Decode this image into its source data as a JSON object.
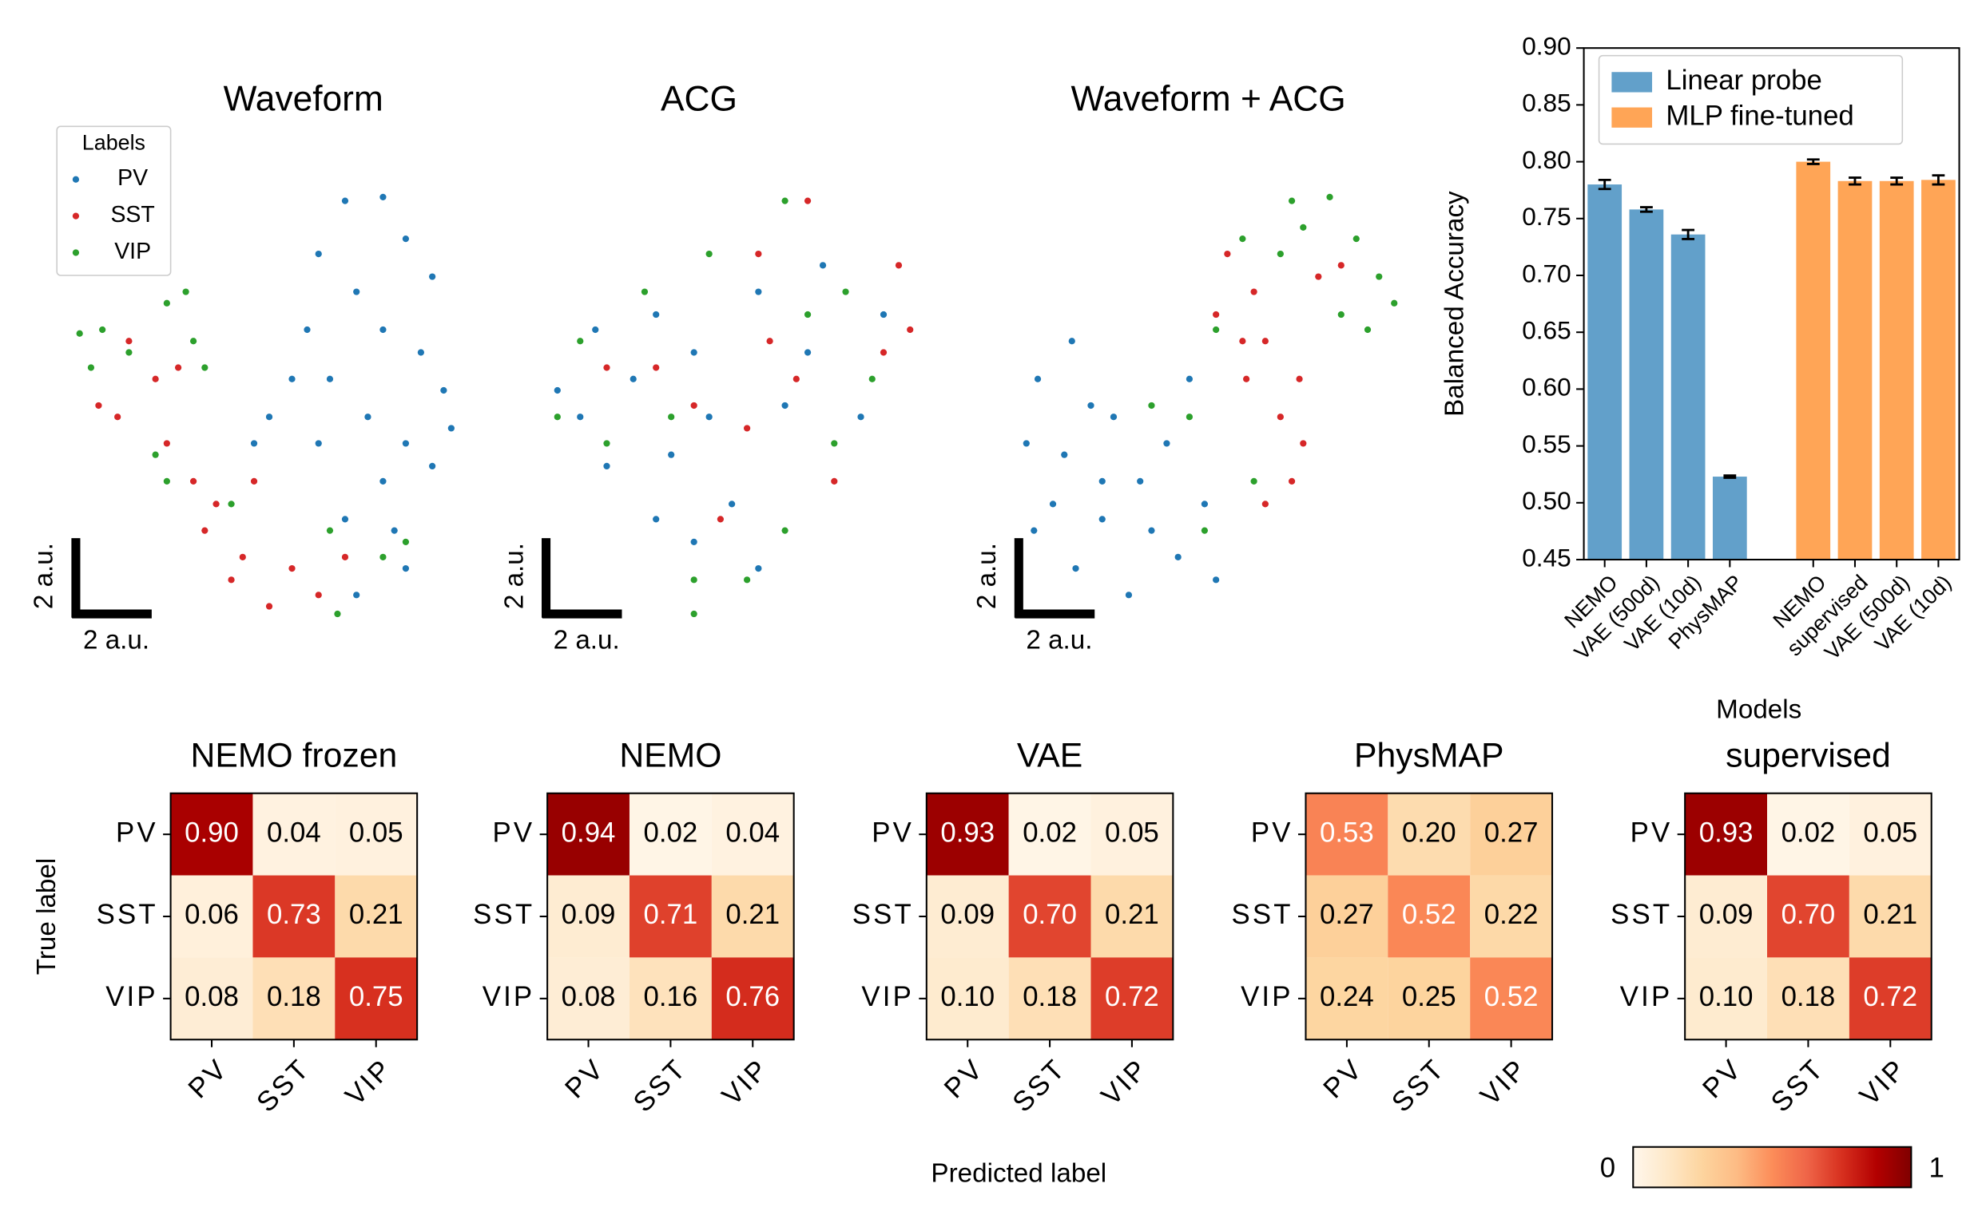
{
  "chart_data": [
    {
      "type": "scatter",
      "title": "Waveform",
      "legend": "upper left",
      "legend_title": "Labels",
      "scale_bar": {
        "value": 2,
        "label": "2 a.u."
      },
      "series": [
        {
          "name": "PV",
          "color": "#1f77b4",
          "x": [
            7.1,
            8.1,
            6.4,
            8.7,
            7.4,
            9.4,
            6.1,
            8.1,
            9.1,
            6.7,
            9.7,
            7.7,
            8.7,
            8.1,
            9.4,
            7.1,
            8.4,
            8.7,
            5.1,
            5.7,
            7.4,
            4.7,
            9.9,
            6.4
          ],
          "y": [
            10.9,
            11.0,
            9.5,
            9.9,
            8.5,
            8.9,
            7.5,
            7.5,
            6.9,
            6.2,
            5.9,
            5.2,
            4.5,
            3.5,
            3.9,
            2.5,
            2.2,
            1.2,
            5.2,
            6.2,
            0.5,
            4.5,
            4.9,
            4.5
          ]
        },
        {
          "name": "SST",
          "color": "#d62728",
          "x": [
            0.6,
            1.1,
            2.4,
            3.1,
            3.4,
            4.4,
            5.7,
            6.4,
            5.1,
            3.7,
            2.1,
            1.4,
            2.7,
            7.1,
            4.1,
            4.7
          ],
          "y": [
            5.5,
            5.2,
            4.5,
            3.5,
            2.2,
            1.5,
            1.2,
            0.5,
            0.2,
            2.9,
            6.2,
            7.2,
            6.5,
            1.5,
            0.9,
            3.5
          ]
        },
        {
          "name": "VIP",
          "color": "#2ca02c",
          "x": [
            0.1,
            0.7,
            1.4,
            2.4,
            2.9,
            3.1,
            3.4,
            2.1,
            4.1,
            6.7,
            8.1,
            8.7,
            6.9,
            2.4,
            0.4
          ],
          "y": [
            7.4,
            7.5,
            6.9,
            8.2,
            8.5,
            7.2,
            6.5,
            4.2,
            2.9,
            2.2,
            1.5,
            1.9,
            0.0,
            3.5,
            6.5
          ]
        }
      ]
    },
    {
      "type": "scatter",
      "title": "ACG",
      "scale_bar": {
        "value": 2,
        "label": "2 a.u."
      },
      "series": [
        {
          "color": "#1f77b4",
          "x": [
            0.3,
            1.3,
            2.3,
            2.9,
            3.9,
            1.6,
            3.3,
            4.3,
            5.6,
            7.3,
            6.9,
            4.9,
            3.9,
            5.6,
            2.9,
            8.9,
            8.3,
            0.9,
            6.3
          ],
          "y": [
            5.9,
            7.5,
            6.2,
            7.9,
            6.9,
            3.9,
            4.2,
            5.2,
            8.5,
            9.2,
            6.9,
            2.9,
            1.9,
            1.2,
            2.5,
            7.9,
            5.2,
            5.2,
            5.5
          ]
        },
        {
          "color": "#d62728",
          "x": [
            6.9,
            5.6,
            9.3,
            9.6,
            6.6,
            7.6,
            5.3,
            3.9,
            2.9,
            1.6,
            4.6,
            5.9,
            8.9
          ],
          "y": [
            10.9,
            9.5,
            9.2,
            7.5,
            6.2,
            3.5,
            4.9,
            5.5,
            6.5,
            6.5,
            2.5,
            7.2,
            6.9
          ]
        },
        {
          "color": "#2ca02c",
          "x": [
            0.3,
            0.9,
            2.6,
            4.3,
            6.3,
            7.9,
            8.6,
            7.6,
            3.9,
            5.3,
            1.6,
            3.3,
            6.3,
            6.9,
            3.9
          ],
          "y": [
            5.2,
            7.2,
            8.5,
            9.5,
            10.9,
            8.5,
            6.2,
            4.5,
            0.9,
            0.9,
            4.5,
            5.2,
            2.2,
            7.9,
            0.0
          ]
        }
      ]
    },
    {
      "type": "scatter",
      "title": "Waveform + ACG",
      "scale_bar": {
        "value": 2,
        "label": "2 a.u."
      },
      "series": [
        {
          "color": "#1f77b4",
          "x": [
            1.4,
            0.5,
            1.9,
            0.2,
            1.2,
            2.5,
            3.2,
            0.9,
            2.2,
            3.5,
            1.5,
            2.9,
            4.2,
            5.2,
            4.5,
            3.9,
            0.4,
            2.2,
            4.9
          ],
          "y": [
            7.2,
            6.2,
            5.5,
            4.5,
            4.2,
            5.2,
            3.5,
            2.9,
            2.5,
            2.2,
            1.2,
            0.5,
            1.5,
            0.9,
            6.2,
            4.5,
            2.2,
            3.5,
            2.9
          ]
        },
        {
          "color": "#d62728",
          "x": [
            5.5,
            6.2,
            6.5,
            6.0,
            6.9,
            7.5,
            7.2,
            6.5,
            5.9,
            7.9,
            8.5,
            5.2,
            7.4
          ],
          "y": [
            9.5,
            8.5,
            7.2,
            6.2,
            5.2,
            4.5,
            3.5,
            2.9,
            7.2,
            8.9,
            9.2,
            7.9,
            6.2
          ]
        },
        {
          "color": "#2ca02c",
          "x": [
            8.2,
            7.5,
            8.9,
            9.5,
            9.9,
            8.5,
            6.9,
            5.9,
            5.2,
            4.5,
            3.5,
            4.9,
            6.2,
            9.2,
            7.2
          ],
          "y": [
            11.0,
            10.2,
            9.9,
            8.9,
            8.2,
            7.9,
            9.5,
            9.9,
            7.5,
            5.2,
            5.5,
            2.2,
            3.5,
            7.5,
            10.9
          ]
        }
      ]
    },
    {
      "type": "bar",
      "xlabel": "Models",
      "ylabel": "Balanced Accuracy",
      "legend": "upper left",
      "categories": [
        "NEMO",
        "VAE (500d)",
        "VAE (10d)",
        "PhysMAP",
        null,
        "NEMO",
        "supervised",
        "VAE (500d)",
        "VAE (10d)"
      ],
      "ylim": [
        0.45,
        0.9
      ],
      "yticks": [
        0.45,
        {
          "value": 0.5,
          "label": "0.50"
        },
        0.55,
        {
          "value": 0.6,
          "label": "0.60"
        },
        0.65,
        {
          "value": 0.7,
          "label": "0.70"
        },
        0.75,
        {
          "value": 0.8,
          "label": "0.80"
        },
        0.85,
        {
          "value": 0.9,
          "label": "0.90"
        }
      ],
      "series": [
        {
          "name": "Linear probe",
          "color": "#62a0ca",
          "values": [
            0.78,
            0.758,
            0.736,
            0.523,
            null,
            null,
            null,
            null,
            null
          ],
          "errors": [
            0.004,
            0.002,
            0.004,
            0.001,
            null,
            null,
            null,
            null,
            null
          ]
        },
        {
          "name": "MLP fine-tuned",
          "color": "#ffa556",
          "values": [
            null,
            null,
            null,
            null,
            null,
            0.8,
            0.783,
            0.783,
            0.784
          ],
          "errors": [
            null,
            null,
            null,
            null,
            null,
            0.002,
            0.003,
            0.003,
            0.004
          ]
        }
      ]
    },
    {
      "type": "heatmap",
      "title": "NEMO frozen",
      "ylabel": "True label",
      "categories": [
        "PV",
        "SST",
        "VIP"
      ],
      "values": [
        [
          0.9,
          0.04,
          0.05
        ],
        [
          0.06,
          0.73,
          0.21
        ],
        [
          0.08,
          0.18,
          0.75
        ]
      ],
      "value_labels": [
        [
          "0.90",
          "0.04",
          "0.05"
        ],
        [
          "0.06",
          "0.73",
          "0.21"
        ],
        [
          "0.08",
          "0.18",
          "0.75"
        ]
      ]
    },
    {
      "type": "heatmap",
      "title": "NEMO",
      "categories": [
        "PV",
        "SST",
        "VIP"
      ],
      "values": [
        [
          0.94,
          0.02,
          0.04
        ],
        [
          0.09,
          0.71,
          0.21
        ],
        [
          0.08,
          0.16,
          0.76
        ]
      ],
      "value_labels": [
        [
          "0.94",
          "0.02",
          "0.04"
        ],
        [
          "0.09",
          "0.71",
          "0.21"
        ],
        [
          "0.08",
          "0.16",
          "0.76"
        ]
      ]
    },
    {
      "type": "heatmap",
      "title": "VAE",
      "xlabel": "Predicted label",
      "categories": [
        "PV",
        "SST",
        "VIP"
      ],
      "values": [
        [
          0.93,
          0.02,
          0.05
        ],
        [
          0.09,
          0.7,
          0.21
        ],
        [
          0.1,
          0.18,
          0.72
        ]
      ],
      "value_labels": [
        [
          "0.93",
          "0.02",
          "0.05"
        ],
        [
          "0.09",
          "0.70",
          "0.21"
        ],
        [
          "0.10",
          "0.18",
          "0.72"
        ]
      ]
    },
    {
      "type": "heatmap",
      "title": "PhysMAP",
      "categories": [
        "PV",
        "SST",
        "VIP"
      ],
      "values": [
        [
          0.53,
          0.2,
          0.27
        ],
        [
          0.27,
          0.52,
          0.22
        ],
        [
          0.24,
          0.25,
          0.52
        ]
      ],
      "value_labels": [
        [
          "0.53",
          "0.20",
          "0.27"
        ],
        [
          "0.27",
          "0.52",
          "0.22"
        ],
        [
          "0.24",
          "0.25",
          "0.52"
        ]
      ]
    },
    {
      "type": "heatmap",
      "title": "supervised",
      "categories": [
        "PV",
        "SST",
        "VIP"
      ],
      "values": [
        [
          0.93,
          0.02,
          0.05
        ],
        [
          0.09,
          0.7,
          0.21
        ],
        [
          0.1,
          0.18,
          0.72
        ]
      ],
      "value_labels": [
        [
          "0.93",
          "0.02",
          "0.05"
        ],
        [
          "0.09",
          "0.70",
          "0.21"
        ],
        [
          "0.10",
          "0.18",
          "0.72"
        ]
      ],
      "colorbar": true,
      "clim": [
        0,
        1
      ],
      "cticks": [
        0,
        1
      ],
      "colormap": [
        "#fff7ec",
        "#fee8c8",
        "#fdd49e",
        "#fdbb84",
        "#fc8d59",
        "#ef6548",
        "#d7301f",
        "#b30000",
        "#7f0000"
      ]
    }
  ]
}
